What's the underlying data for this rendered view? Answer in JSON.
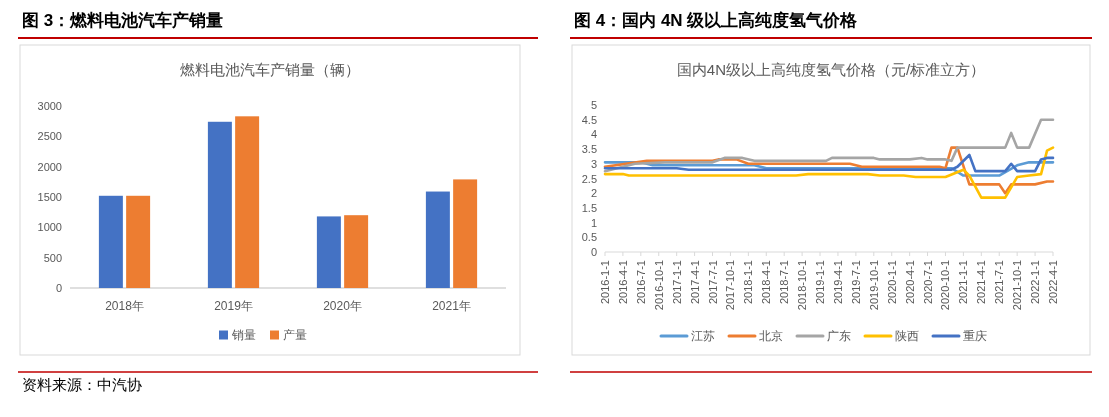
{
  "chart_data": [
    {
      "type": "bar",
      "title": "图 3：燃料电池汽车产销量",
      "subtitle": "燃料电池汽车产销量（辆）",
      "categories": [
        "2018年",
        "2019年",
        "2020年",
        "2021年"
      ],
      "series": [
        {
          "name": "销量",
          "color": "#4472c4",
          "values": [
            1520,
            2740,
            1180,
            1590
          ]
        },
        {
          "name": "产量",
          "color": "#ed7d31",
          "values": [
            1520,
            2830,
            1200,
            1790
          ]
        }
      ],
      "ylim": [
        0,
        3000
      ],
      "yticks": [
        0,
        500,
        1000,
        1500,
        2000,
        2500,
        3000
      ],
      "grid": false,
      "legend": "bottom",
      "annotations": [
        "资料来源：中汽协"
      ]
    },
    {
      "type": "line",
      "title": "图 4：国内 4N 级以上高纯度氢气价格",
      "subtitle": "国内4N级以上高纯度氢气价格（元/标准立方）",
      "series": [
        {
          "name": "江苏",
          "color": "#5b9bd5",
          "x": [
            "2016-01",
            "2016-07",
            "2016-09",
            "2018-02",
            "2018-04",
            "2020-11",
            "2021-01",
            "2021-07",
            "2021-10",
            "2021-12",
            "2022-04"
          ],
          "values": [
            3.05,
            3.05,
            2.95,
            2.95,
            2.85,
            2.85,
            2.6,
            2.6,
            2.95,
            3.05,
            3.05
          ]
        },
        {
          "name": "北京",
          "color": "#ed7d31",
          "x": [
            "2016-01",
            "2016-08",
            "2017-07",
            "2017-08",
            "2017-11",
            "2018-01",
            "2019-06",
            "2019-08",
            "2020-09",
            "2020-10",
            "2020-11",
            "2020-12",
            "2021-02",
            "2021-07",
            "2021-08",
            "2021-09",
            "2022-01",
            "2022-03",
            "2022-04"
          ],
          "values": [
            2.9,
            3.1,
            3.1,
            3.15,
            3.15,
            3.0,
            3.0,
            2.9,
            2.9,
            2.85,
            3.55,
            3.55,
            2.3,
            2.3,
            2.0,
            2.3,
            2.3,
            2.4,
            2.4
          ]
        },
        {
          "name": "广东",
          "color": "#a5a5a5",
          "x": [
            "2016-01",
            "2016-06",
            "2016-11",
            "2017-07",
            "2017-09",
            "2017-12",
            "2018-02",
            "2019-02",
            "2019-03",
            "2019-10",
            "2019-11",
            "2020-04",
            "2020-06",
            "2020-07",
            "2020-10",
            "2020-11",
            "2020-12",
            "2021-08",
            "2021-09",
            "2021-10",
            "2021-12",
            "2022-02",
            "2022-04"
          ],
          "values": [
            2.75,
            3.0,
            3.05,
            3.05,
            3.2,
            3.2,
            3.1,
            3.1,
            3.2,
            3.2,
            3.15,
            3.15,
            3.2,
            3.15,
            3.15,
            3.1,
            3.55,
            3.55,
            4.05,
            3.55,
            3.55,
            4.5,
            4.5
          ]
        },
        {
          "name": "陕西",
          "color": "#ffc000",
          "x": [
            "2016-01",
            "2016-04",
            "2016-05",
            "2018-09",
            "2018-11",
            "2019-09",
            "2019-11",
            "2020-03",
            "2020-05",
            "2020-10",
            "2021-01",
            "2021-02",
            "2021-04",
            "2021-08",
            "2021-10",
            "2021-12",
            "2022-02",
            "2022-03",
            "2022-04"
          ],
          "values": [
            2.65,
            2.65,
            2.6,
            2.6,
            2.65,
            2.65,
            2.6,
            2.6,
            2.55,
            2.55,
            2.8,
            2.6,
            1.85,
            1.85,
            2.55,
            2.6,
            2.65,
            3.45,
            3.55
          ]
        },
        {
          "name": "重庆",
          "color": "#4472c4",
          "x": [
            "2016-01",
            "2017-01",
            "2017-03",
            "2020-11",
            "2020-12",
            "2021-02",
            "2021-03",
            "2021-08",
            "2021-09",
            "2021-10",
            "2022-01",
            "2022-02",
            "2022-03",
            "2022-04"
          ],
          "values": [
            2.85,
            2.85,
            2.8,
            2.8,
            2.9,
            3.3,
            2.75,
            2.75,
            3.0,
            2.75,
            2.75,
            3.15,
            3.2,
            3.2
          ]
        }
      ],
      "xlim": [
        "2016-01",
        "2022-04"
      ],
      "xticks": [
        {
          "value": "2016-01",
          "label": "2016-1-1"
        },
        {
          "value": "2016-04",
          "label": "2016-4-1"
        },
        {
          "value": "2016-07",
          "label": "2016-7-1"
        },
        {
          "value": "2016-10",
          "label": "2016-10-1"
        },
        {
          "value": "2017-01",
          "label": "2017-1-1"
        },
        {
          "value": "2017-04",
          "label": "2017-4-1"
        },
        {
          "value": "2017-07",
          "label": "2017-7-1"
        },
        {
          "value": "2017-10",
          "label": "2017-10-1"
        },
        {
          "value": "2018-01",
          "label": "2018-1-1"
        },
        {
          "value": "2018-04",
          "label": "2018-4-1"
        },
        {
          "value": "2018-07",
          "label": "2018-7-1"
        },
        {
          "value": "2018-10",
          "label": "2018-10-1"
        },
        {
          "value": "2019-01",
          "label": "2019-1-1"
        },
        {
          "value": "2019-04",
          "label": "2019-4-1"
        },
        {
          "value": "2019-07",
          "label": "2019-7-1"
        },
        {
          "value": "2019-10",
          "label": "2019-10-1"
        },
        {
          "value": "2020-01",
          "label": "2020-1-1"
        },
        {
          "value": "2020-04",
          "label": "2020-4-1"
        },
        {
          "value": "2020-07",
          "label": "2020-7-1"
        },
        {
          "value": "2020-10",
          "label": "2020-10-1"
        },
        {
          "value": "2021-01",
          "label": "2021-1-1"
        },
        {
          "value": "2021-04",
          "label": "2021-4-1"
        },
        {
          "value": "2021-07",
          "label": "2021-7-1"
        },
        {
          "value": "2021-10",
          "label": "2021-10-1"
        },
        {
          "value": "2022-01",
          "label": "2022-1-1"
        },
        {
          "value": "2022-04",
          "label": "2022-4-1"
        }
      ],
      "ylim": [
        0,
        5
      ],
      "yticks": [
        0,
        0.5,
        1,
        1.5,
        2,
        2.5,
        3,
        3.5,
        4,
        4.5,
        5
      ],
      "grid": false,
      "legend": "bottom"
    }
  ]
}
